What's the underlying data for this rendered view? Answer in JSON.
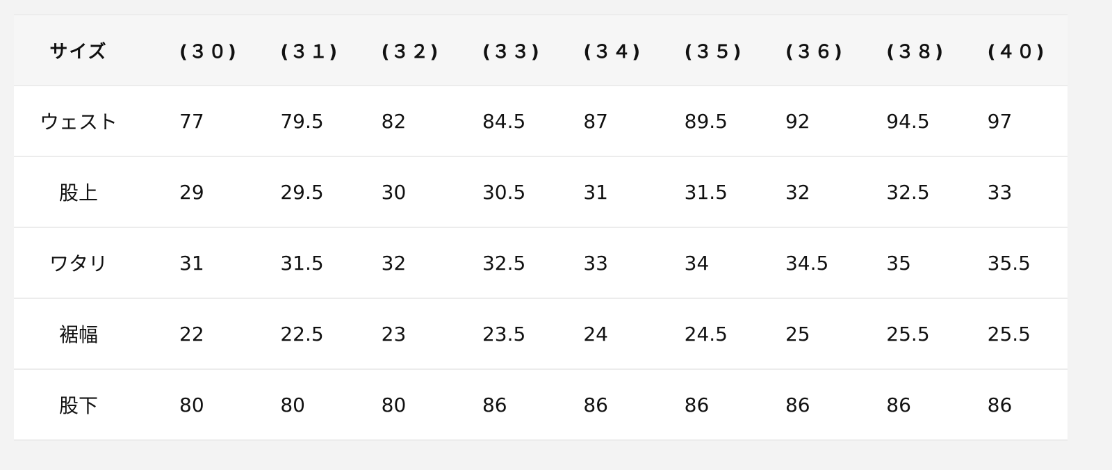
{
  "table": {
    "header": [
      "サイズ",
      "(３０)",
      "(３１)",
      "(３２)",
      "(３３)",
      "(３４)",
      "(３５)",
      "(３６)",
      "(３８)",
      "(４０)"
    ],
    "rows": [
      {
        "label": "ウェスト",
        "values": [
          "77",
          "79.5",
          "82",
          "84.5",
          "87",
          "89.5",
          "92",
          "94.5",
          "97"
        ]
      },
      {
        "label": "股上",
        "values": [
          "29",
          "29.5",
          "30",
          "30.5",
          "31",
          "31.5",
          "32",
          "32.5",
          "33"
        ]
      },
      {
        "label": "ワタリ",
        "values": [
          "31",
          "31.5",
          "32",
          "32.5",
          "33",
          "34",
          "34.5",
          "35",
          "35.5"
        ]
      },
      {
        "label": "裾幅",
        "values": [
          "22",
          "22.5",
          "23",
          "23.5",
          "24",
          "24.5",
          "25",
          "25.5",
          "25.5"
        ]
      },
      {
        "label": "股下",
        "values": [
          "80",
          "80",
          "80",
          "86",
          "86",
          "86",
          "86",
          "86",
          "86"
        ]
      }
    ]
  }
}
